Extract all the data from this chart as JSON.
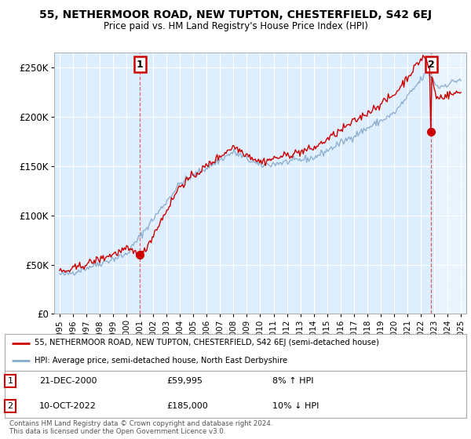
{
  "title": "55, NETHERMOOR ROAD, NEW TUPTON, CHESTERFIELD, S42 6EJ",
  "subtitle": "Price paid vs. HM Land Registry's House Price Index (HPI)",
  "ylabel_ticks": [
    "£0",
    "£50K",
    "£100K",
    "£150K",
    "£200K",
    "£250K"
  ],
  "ytick_vals": [
    0,
    50000,
    100000,
    150000,
    200000,
    250000
  ],
  "ylim": [
    0,
    265000
  ],
  "xlim_start": 1994.6,
  "xlim_end": 2025.4,
  "red_color": "#cc0000",
  "blue_color": "#88aacc",
  "plot_bg": "#ddeeff",
  "grid_color": "#ffffff",
  "bg_color": "#ffffff",
  "annotation_border_color": "#cc0000",
  "purchase1_x": 2001.0,
  "purchase1_y": 59995,
  "purchase1_label": "1",
  "purchase1_date": "21-DEC-2000",
  "purchase1_price": "£59,995",
  "purchase1_hpi": "8% ↑ HPI",
  "purchase2_x": 2022.78,
  "purchase2_y": 185000,
  "purchase2_label": "2",
  "purchase2_date": "10-OCT-2022",
  "purchase2_price": "£185,000",
  "purchase2_hpi": "10% ↓ HPI",
  "legend_line1": "55, NETHERMOOR ROAD, NEW TUPTON, CHESTERFIELD, S42 6EJ (semi-detached house)",
  "legend_line2": "HPI: Average price, semi-detached house, North East Derbyshire",
  "footer": "Contains HM Land Registry data © Crown copyright and database right 2024.\nThis data is licensed under the Open Government Licence v3.0.",
  "xtick_years": [
    1995,
    1996,
    1997,
    1998,
    1999,
    2000,
    2001,
    2002,
    2003,
    2004,
    2005,
    2006,
    2007,
    2008,
    2009,
    2010,
    2011,
    2012,
    2013,
    2014,
    2015,
    2016,
    2017,
    2018,
    2019,
    2020,
    2021,
    2022,
    2023,
    2024,
    2025
  ]
}
